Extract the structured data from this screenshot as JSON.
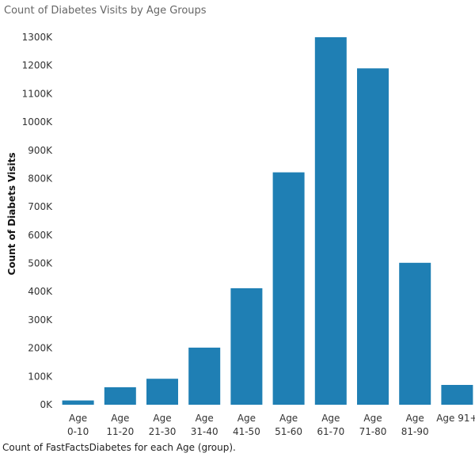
{
  "title": "Count of Diabetes Visits by Age Groups",
  "caption": "Count of FastFactsDiabetes for each Age (group).",
  "chart_data": {
    "type": "bar",
    "title": "Count of Diabetes Visits by Age Groups",
    "ylabel": "Count of Diabets Visits",
    "xlabel": "",
    "categories": [
      [
        "Age",
        "0-10"
      ],
      [
        "Age",
        "11-20"
      ],
      [
        "Age",
        "21-30"
      ],
      [
        "Age",
        "31-40"
      ],
      [
        "Age",
        "41-50"
      ],
      [
        "Age",
        "51-60"
      ],
      [
        "Age",
        "61-70"
      ],
      [
        "Age",
        "71-80"
      ],
      [
        "Age",
        "81-90"
      ],
      [
        "Age 91+"
      ]
    ],
    "values": [
      15000,
      62000,
      92000,
      202000,
      412000,
      822000,
      1300000,
      1190000,
      502000,
      70000
    ],
    "yticks": [
      "0K",
      "100K",
      "200K",
      "300K",
      "400K",
      "500K",
      "600K",
      "700K",
      "800K",
      "900K",
      "1000K",
      "1100K",
      "1200K",
      "1300K"
    ],
    "ylim": [
      0,
      1300000
    ],
    "grid": false,
    "bar_color": "#1f7fb4"
  }
}
